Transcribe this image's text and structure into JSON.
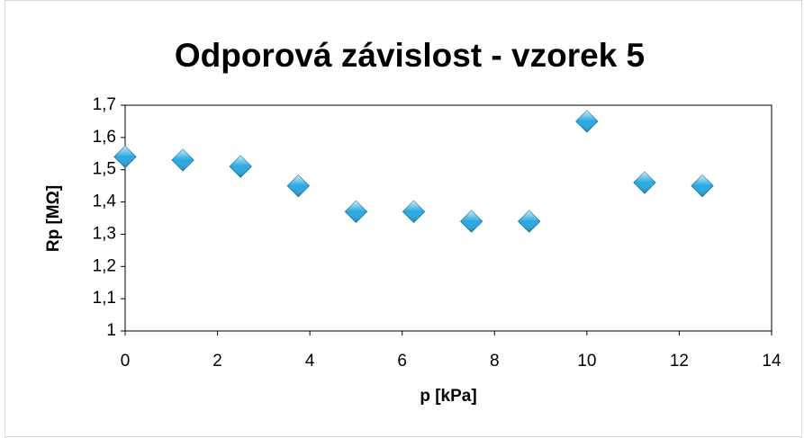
{
  "chart_data": {
    "type": "scatter",
    "title": "Odporová závislost - vzorek 5",
    "x_label": "p [kPa]",
    "y_label": "Rp [MΩ]",
    "series": [
      {
        "color": "#29a8e0",
        "x": [
          0,
          1.25,
          2.5,
          3.75,
          5,
          6.25,
          7.5,
          8.75,
          10,
          11.25,
          12.5
        ],
        "values": [
          1.54,
          1.53,
          1.51,
          1.45,
          1.37,
          1.37,
          1.34,
          1.34,
          1.65,
          1.46,
          1.45
        ]
      }
    ],
    "xlim": [
      0,
      14
    ],
    "xticks": [
      0,
      2,
      4,
      6,
      8,
      10,
      12,
      14
    ],
    "ylim": [
      1,
      1.7
    ],
    "yticks": [
      1,
      {
        "value": 1.1,
        "label": "1,1"
      },
      {
        "value": 1.2,
        "label": "1,2"
      },
      {
        "value": 1.3,
        "label": "1,3"
      },
      {
        "value": 1.4,
        "label": "1,4"
      },
      {
        "value": 1.5,
        "label": "1,5"
      },
      {
        "value": 1.6,
        "label": "1,6"
      },
      {
        "value": 1.7,
        "label": "1,7"
      }
    ],
    "grid": false
  }
}
